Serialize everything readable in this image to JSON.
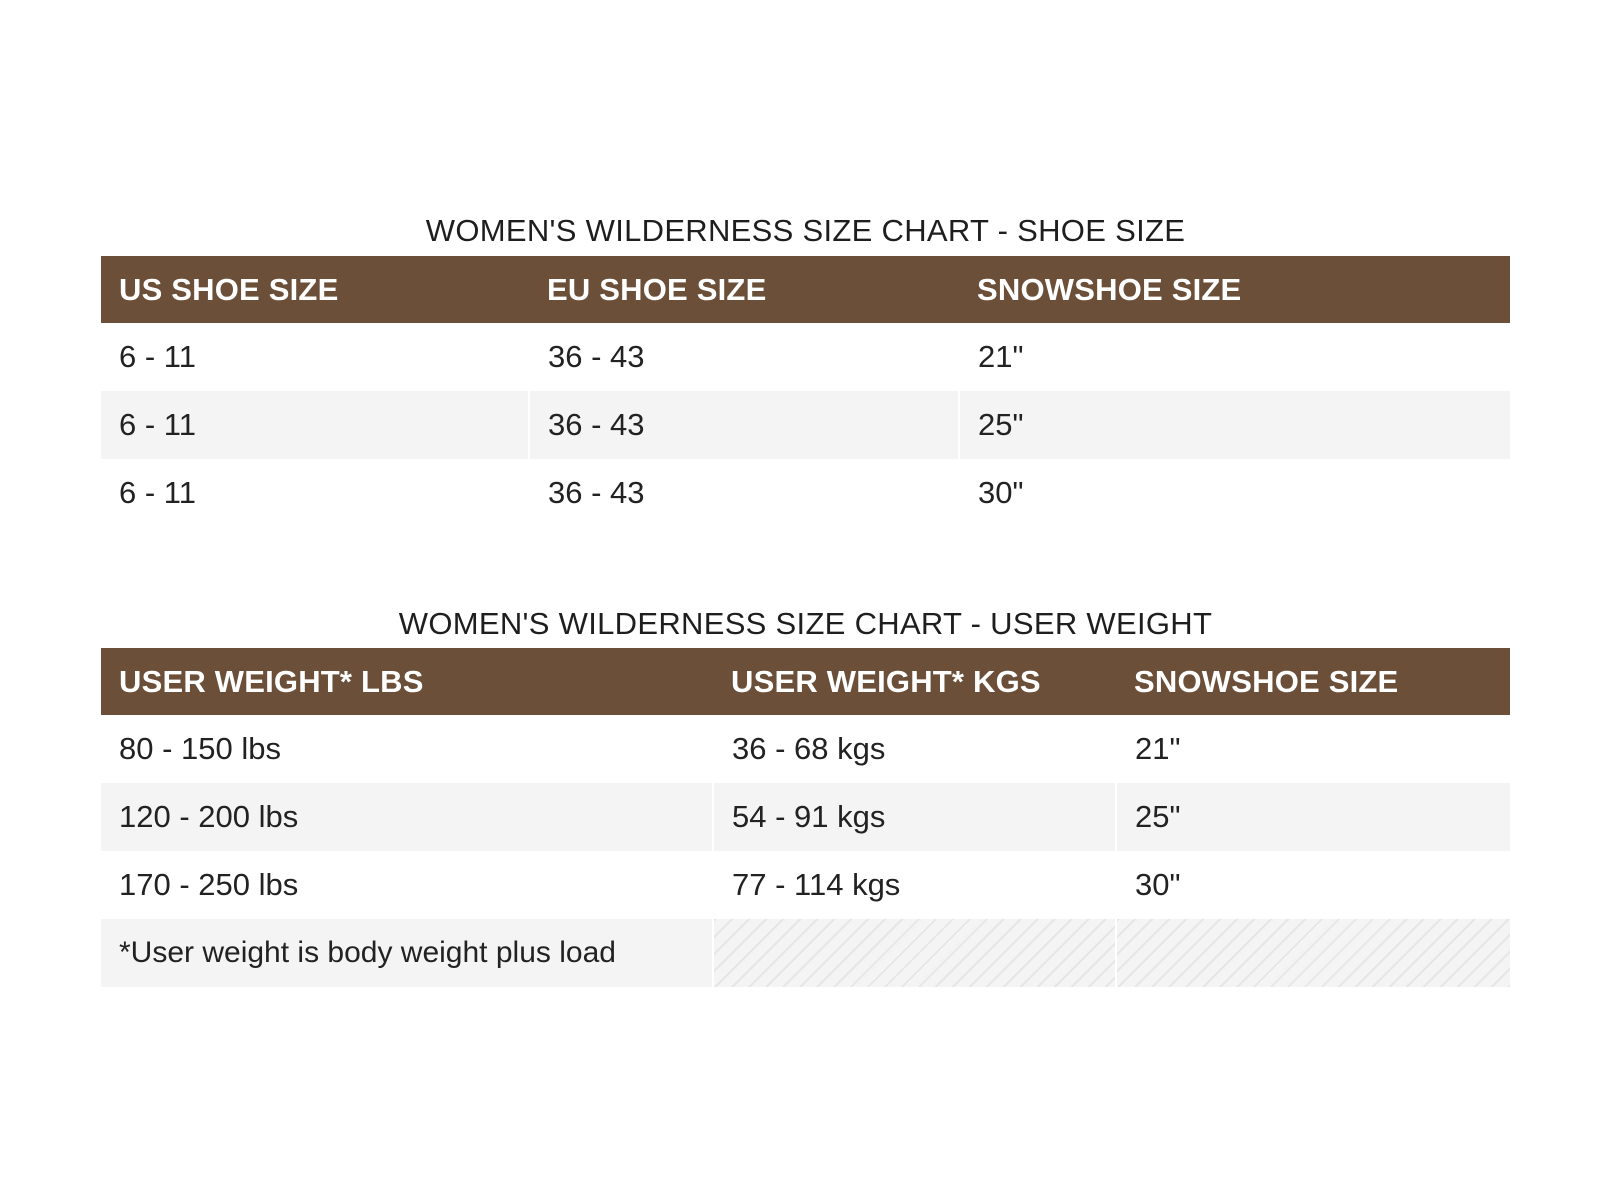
{
  "shoe_chart": {
    "title": "WOMEN'S WILDERNESS SIZE CHART - SHOE SIZE",
    "headers": [
      "US SHOE SIZE",
      "EU SHOE SIZE",
      "SNOWSHOE SIZE"
    ],
    "rows": [
      [
        "6 - 11",
        "36 - 43",
        "21\""
      ],
      [
        "6 - 11",
        "36 - 43",
        "25\""
      ],
      [
        "6 - 11",
        "36 - 43",
        "30\""
      ]
    ]
  },
  "weight_chart": {
    "title": "WOMEN'S WILDERNESS SIZE CHART - USER WEIGHT",
    "headers": [
      "USER WEIGHT* LBS",
      "USER WEIGHT* KGS",
      "SNOWSHOE SIZE"
    ],
    "rows": [
      [
        "80 - 150 lbs",
        "36 - 68 kgs",
        "21\""
      ],
      [
        "120 - 200 lbs",
        "54 - 91 kgs",
        "25\""
      ],
      [
        "170 - 250 lbs",
        "77 - 114 kgs",
        "30\""
      ]
    ],
    "footnote": "*User weight is body weight plus load"
  },
  "colors": {
    "header_background": "#6b4f38",
    "header_text": "#ffffff",
    "stripe_row": "#f4f4f4"
  }
}
